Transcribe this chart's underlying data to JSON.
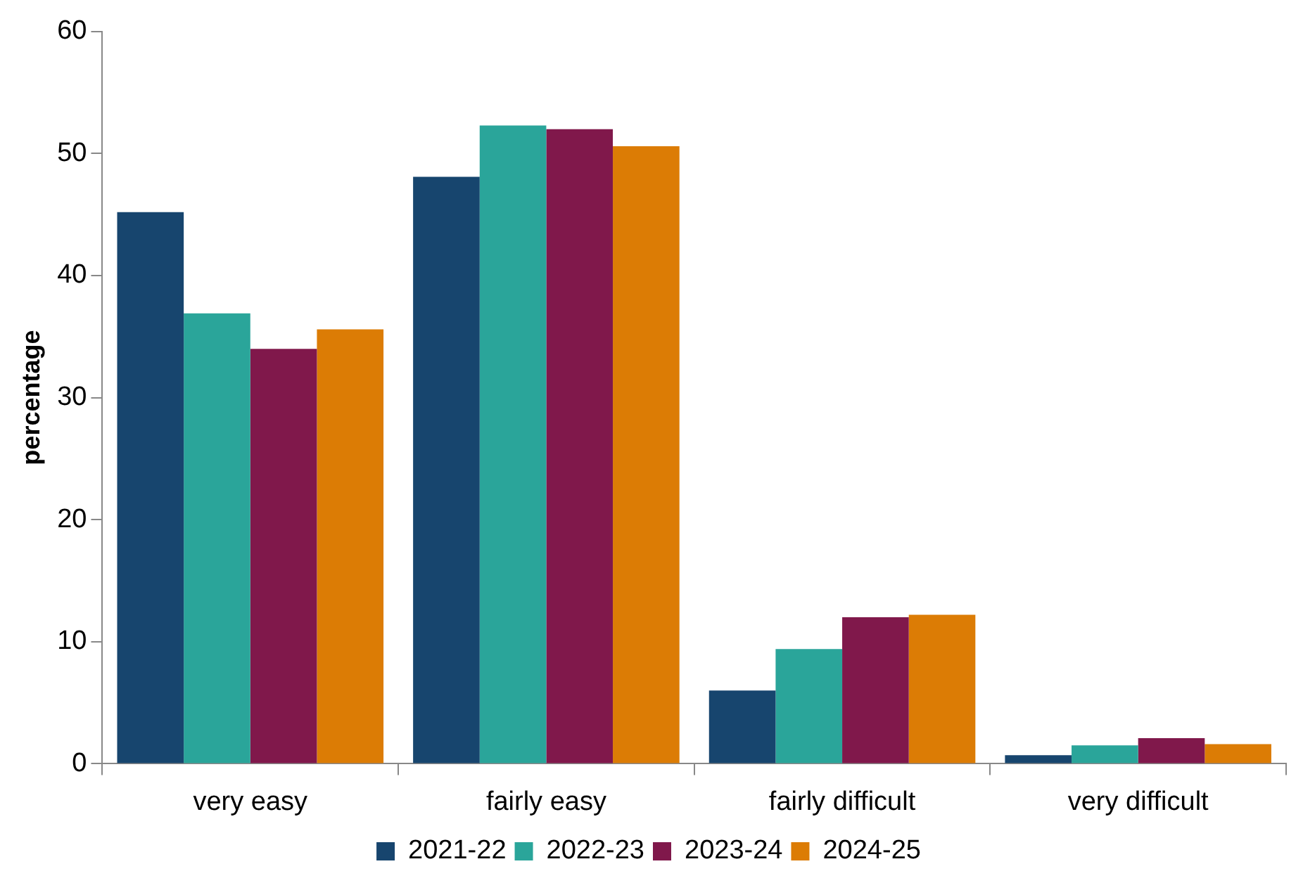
{
  "chart_data": {
    "type": "bar",
    "ylabel": "percentage",
    "categories": [
      "very easy",
      "fairly easy",
      "fairly difficult",
      "very difficult"
    ],
    "series": [
      {
        "name": "2021-22",
        "color": "#17456e",
        "values": [
          45.2,
          48.1,
          6.0,
          0.7
        ]
      },
      {
        "name": "2022-23",
        "color": "#2aa59a",
        "values": [
          36.9,
          52.3,
          9.4,
          1.5
        ]
      },
      {
        "name": "2023-24",
        "color": "#80184b",
        "values": [
          34.0,
          52.0,
          12.0,
          2.1
        ]
      },
      {
        "name": "2024-25",
        "color": "#dc7c05",
        "values": [
          35.6,
          50.6,
          12.2,
          1.6
        ]
      }
    ],
    "ylim": [
      0,
      60
    ],
    "yticks": [
      0,
      10,
      20,
      30,
      40,
      50,
      60
    ],
    "grid": false,
    "legend": "bottom"
  }
}
